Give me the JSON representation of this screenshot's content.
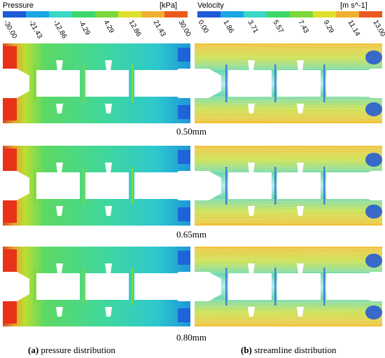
{
  "pressure_legend": {
    "title": "Pressure",
    "unit": "[kPa]",
    "ticks": [
      "-30.00",
      "-21.43",
      "-12.86",
      "-4.29",
      "4.29",
      "12.86",
      "21.43",
      "30.00"
    ],
    "colors": [
      "#1f5bd6",
      "#1aa7e6",
      "#38d7c6",
      "#3ed86a",
      "#7bd93a",
      "#dfe02a",
      "#f2b030",
      "#ea5a1e"
    ]
  },
  "velocity_legend": {
    "title": "Velocity",
    "unit": "[m s^-1]",
    "ticks": [
      "0.00",
      "1.86",
      "3.71",
      "5.57",
      "7.43",
      "9.29",
      "11.14",
      "13.00"
    ],
    "colors": [
      "#1f5bd6",
      "#1aa7e6",
      "#38d7c6",
      "#3ed86a",
      "#7bd93a",
      "#dfe02a",
      "#f2b030",
      "#ea5a1e"
    ]
  },
  "rows": [
    {
      "label": "0.50mm"
    },
    {
      "label": "0.65mm"
    },
    {
      "label": "0.80mm"
    }
  ],
  "captions": {
    "left_letter": "(a)",
    "left_text": " pressure distribution",
    "right_letter": "(b)",
    "right_text": " streamline distribution"
  }
}
